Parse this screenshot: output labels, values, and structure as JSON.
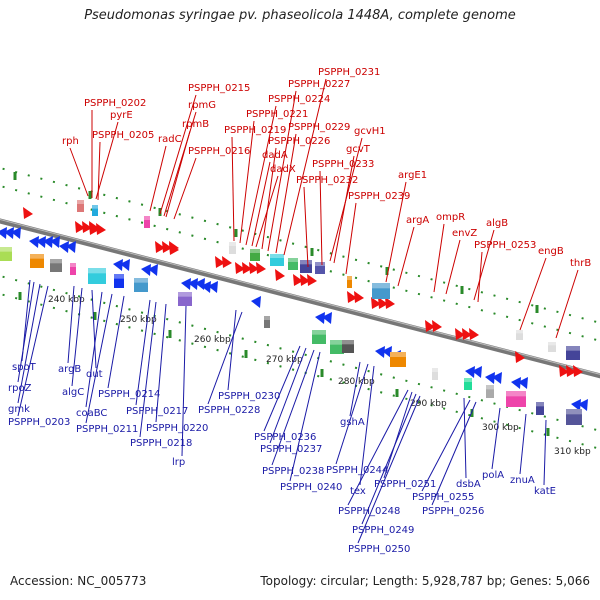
{
  "title": "Pseudomonas syringae pv. phaseolicola 1448A, complete genome",
  "footer": {
    "accession": "Accession: NC_005773",
    "topology": "Topology: circular; Length: 5,928,787 bp; Genes: 5,066"
  },
  "colors": {
    "forward_label": "#cc0000",
    "reverse_label": "#1a1aa6",
    "backbone": "#888888",
    "tick": "#2a8a2a"
  },
  "scale_ticks": [
    "240 kbp",
    "250 kbp",
    "260 kbp",
    "270 kbp",
    "280 kbp",
    "290 kbp",
    "300 kbp",
    "310 kbp"
  ],
  "forward_labels": [
    "rph",
    "PSPPH_0202",
    "pyrE",
    "PSPPH_0205",
    "radC",
    "PSPPH_0215",
    "rpmG",
    "rpmB",
    "PSPPH_0216",
    "PSPPH_0219",
    "PSPPH_0221",
    "PSPPH_0224",
    "dadA",
    "dadX",
    "PSPPH_0226",
    "PSPPH_0227",
    "PSPPH_0229",
    "PSPPH_0231",
    "gcvH1",
    "gcvT",
    "PSPPH_0233",
    "PSPPH_0232",
    "PSPPH_0239",
    "argE1",
    "argA",
    "ompR",
    "envZ",
    "algB",
    "PSPPH_0253",
    "engB",
    "thrB"
  ],
  "reverse_labels": [
    "spoT",
    "rpoZ",
    "gmk",
    "PSPPH_0203",
    "argB",
    "algC",
    "dut",
    "coaBC",
    "PSPPH_0211",
    "PSPPH_0214",
    "PSPPH_0217",
    "PSPPH_0218",
    "PSPPH_0220",
    "lrp",
    "PSPPH_0230",
    "PSPPH_0228",
    "PSPPH_0236",
    "PSPPH_0237",
    "PSPPH_0238",
    "PSPPH_0240",
    "gshA",
    "PSPPH_0244",
    "tex",
    "PSPPH_0251",
    "PSPPH_0248",
    "PSPPH_0249",
    "PSPPH_0250",
    "dsbA",
    "PSPPH_0255",
    "PSPPH_0256",
    "polA",
    "znuA",
    "katE"
  ]
}
